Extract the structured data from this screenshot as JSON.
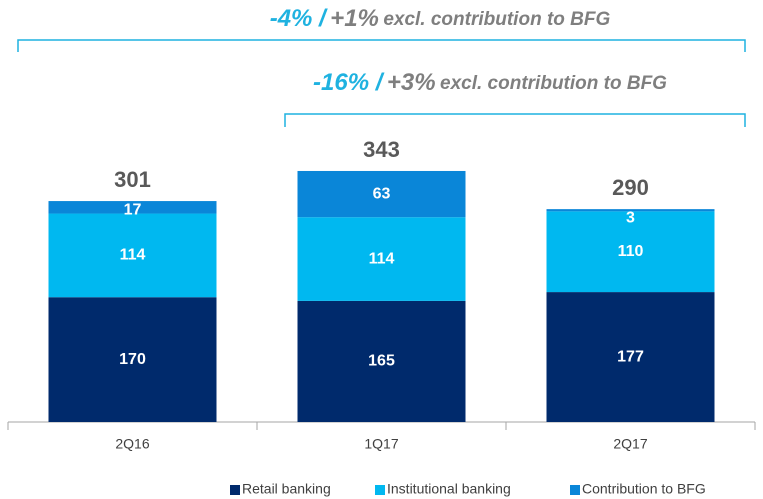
{
  "chart_data": {
    "type": "stacked_bar",
    "categories": [
      "2Q16",
      "1Q17",
      "2Q17"
    ],
    "series": [
      {
        "name": "Retail banking",
        "color": "#002a6c",
        "values": [
          170,
          165,
          177
        ]
      },
      {
        "name": "Institutional banking",
        "color": "#00b8f0",
        "values": [
          114,
          114,
          110
        ]
      },
      {
        "name": "Contribution to BFG",
        "color": "#0a86d8",
        "values": [
          17,
          63,
          3
        ]
      }
    ],
    "totals": [
      301,
      343,
      290
    ],
    "ylim": [
      0,
      400
    ],
    "annotations": [
      {
        "highlight": "-4% /",
        "text": "+1%",
        "note": "excl. contribution to BFG"
      },
      {
        "highlight": "-16% /",
        "text": "+3%",
        "note": "excl. contribution to BFG"
      }
    ]
  }
}
